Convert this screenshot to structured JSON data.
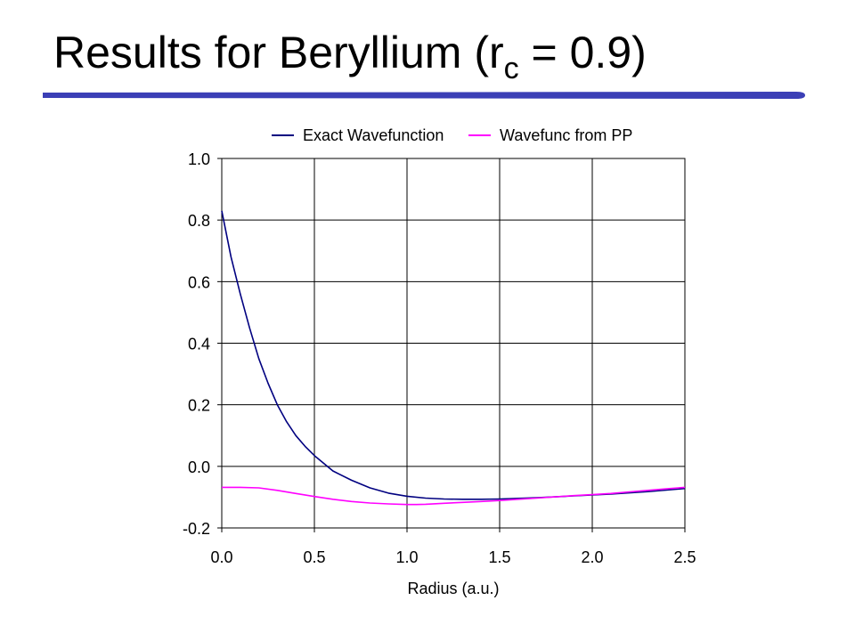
{
  "slide": {
    "title_prefix": "Results for Beryllium  (r",
    "title_sub": "c",
    "title_suffix": " = 0.9)",
    "accent_color": "#3B3FB6"
  },
  "chart_data": {
    "type": "line",
    "xlabel": "Radius (a.u.)",
    "ylabel": "",
    "xlim": [
      0.0,
      2.5
    ],
    "ylim": [
      -0.2,
      1.0
    ],
    "x_ticks": [
      "0.0",
      "0.5",
      "1.0",
      "1.5",
      "2.0",
      "2.5"
    ],
    "y_ticks": [
      "1.0",
      "0.8",
      "0.6",
      "0.4",
      "0.2",
      "0.0",
      "-0.2"
    ],
    "grid": true,
    "legend_position": "top",
    "series": [
      {
        "name": "Exact Wavefunction",
        "color": "#000080",
        "x": [
          0.0,
          0.05,
          0.1,
          0.15,
          0.2,
          0.25,
          0.3,
          0.35,
          0.4,
          0.45,
          0.5,
          0.55,
          0.6,
          0.7,
          0.8,
          0.9,
          1.0,
          1.1,
          1.2,
          1.3,
          1.4,
          1.5,
          1.6,
          1.7,
          1.8,
          1.9,
          2.0,
          2.1,
          2.2,
          2.3,
          2.4,
          2.5
        ],
        "y": [
          0.83,
          0.68,
          0.56,
          0.45,
          0.35,
          0.27,
          0.2,
          0.145,
          0.1,
          0.065,
          0.035,
          0.01,
          -0.015,
          -0.045,
          -0.07,
          -0.087,
          -0.097,
          -0.103,
          -0.106,
          -0.107,
          -0.107,
          -0.106,
          -0.104,
          -0.102,
          -0.099,
          -0.096,
          -0.093,
          -0.09,
          -0.086,
          -0.082,
          -0.077,
          -0.072
        ]
      },
      {
        "name": "Wavefunc from PP",
        "color": "#FF00FF",
        "x": [
          0.0,
          0.1,
          0.2,
          0.3,
          0.4,
          0.5,
          0.6,
          0.7,
          0.8,
          0.9,
          1.0,
          1.05,
          1.1,
          1.2,
          1.3,
          1.4,
          1.5,
          1.6,
          1.7,
          1.8,
          1.9,
          2.0,
          2.1,
          2.2,
          2.3,
          2.4,
          2.5
        ],
        "y": [
          -0.068,
          -0.068,
          -0.07,
          -0.078,
          -0.088,
          -0.098,
          -0.107,
          -0.114,
          -0.119,
          -0.122,
          -0.124,
          -0.124,
          -0.123,
          -0.12,
          -0.117,
          -0.114,
          -0.111,
          -0.107,
          -0.103,
          -0.099,
          -0.095,
          -0.092,
          -0.088,
          -0.083,
          -0.078,
          -0.073,
          -0.068
        ]
      }
    ]
  }
}
